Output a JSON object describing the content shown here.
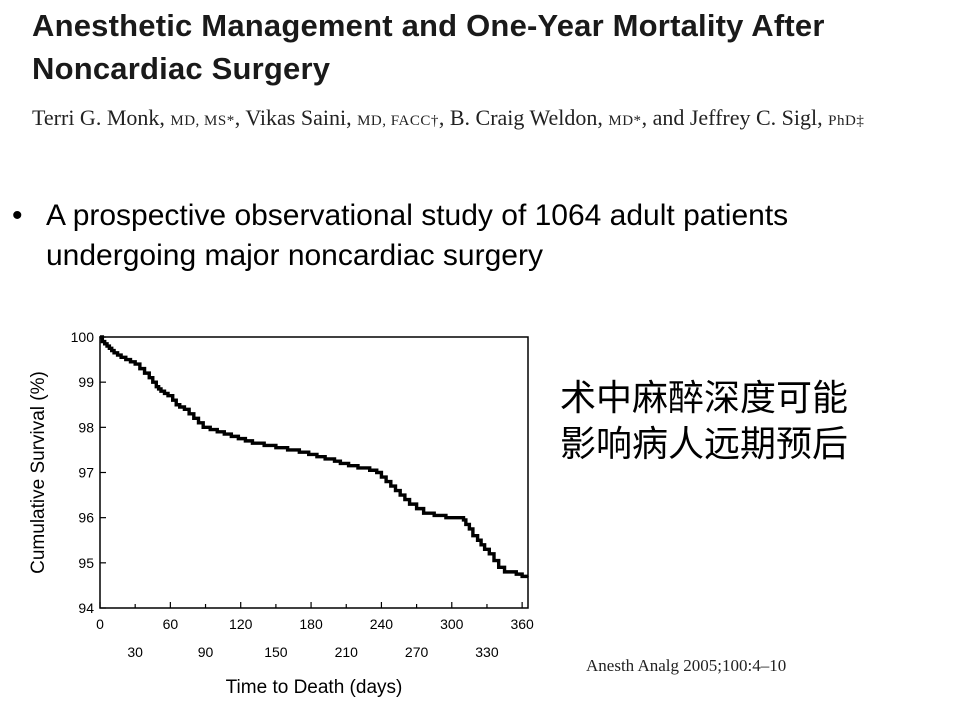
{
  "header": {
    "title": "Anesthetic Management and One-Year Mortality After Noncardiac Surgery",
    "authors": {
      "a1_name": "Terri G. Monk, ",
      "a1_deg": "MD, MS*",
      "a2_name": ", Vikas Saini, ",
      "a2_deg": "MD, FACC†",
      "a3_name": ", B. Craig Weldon, ",
      "a3_deg": "MD*",
      "a4_name": ", and Jeffrey C. Sigl, ",
      "a4_deg": "PhD‡"
    }
  },
  "bullet": {
    "dot": "•",
    "text": "A prospective observational study of 1064 adult patients undergoing major noncardiac surgery"
  },
  "annotation": {
    "line1": "术中麻醉深度可能",
    "line2": "影响病人远期预后"
  },
  "citation": "Anesth Analg 2005;100:4–10",
  "chart_data": {
    "type": "line",
    "title": "",
    "xlabel": "Time to Death (days)",
    "ylabel": "Cumulative Survival (%)",
    "xlim": [
      0,
      365
    ],
    "ylim": [
      94,
      100
    ],
    "x_ticks_top": [
      "0",
      "60",
      "120",
      "180",
      "240",
      "300",
      "360"
    ],
    "x_ticks_bottom": [
      "30",
      "90",
      "150",
      "210",
      "270",
      "330"
    ],
    "y_ticks": [
      "100",
      "99",
      "98",
      "97",
      "96",
      "95",
      "94"
    ],
    "grid": false,
    "series": [
      {
        "style": "step",
        "color": "#000000",
        "x": [
          0,
          2,
          4,
          6,
          8,
          10,
          12,
          15,
          18,
          22,
          26,
          30,
          34,
          38,
          42,
          45,
          48,
          50,
          52,
          55,
          58,
          62,
          65,
          68,
          72,
          76,
          80,
          84,
          88,
          94,
          100,
          106,
          112,
          118,
          124,
          130,
          140,
          150,
          160,
          170,
          178,
          185,
          192,
          200,
          205,
          212,
          220,
          230,
          236,
          240,
          244,
          248,
          252,
          256,
          260,
          264,
          270,
          276,
          285,
          295,
          305,
          310,
          312,
          315,
          318,
          322,
          325,
          328,
          332,
          336,
          340,
          345,
          350,
          355,
          360,
          365
        ],
        "y": [
          100,
          99.9,
          99.85,
          99.8,
          99.75,
          99.7,
          99.65,
          99.6,
          99.55,
          99.5,
          99.45,
          99.4,
          99.3,
          99.2,
          99.1,
          99.0,
          98.9,
          98.85,
          98.8,
          98.75,
          98.7,
          98.6,
          98.5,
          98.45,
          98.4,
          98.3,
          98.2,
          98.1,
          98.0,
          97.95,
          97.9,
          97.85,
          97.8,
          97.75,
          97.7,
          97.65,
          97.6,
          97.55,
          97.5,
          97.45,
          97.4,
          97.35,
          97.3,
          97.25,
          97.2,
          97.15,
          97.1,
          97.05,
          97.0,
          96.9,
          96.8,
          96.7,
          96.6,
          96.5,
          96.4,
          96.3,
          96.2,
          96.1,
          96.05,
          96.0,
          96.0,
          95.95,
          95.85,
          95.75,
          95.6,
          95.5,
          95.4,
          95.3,
          95.2,
          95.05,
          94.9,
          94.8,
          94.8,
          94.75,
          94.7,
          94.7
        ]
      }
    ]
  }
}
